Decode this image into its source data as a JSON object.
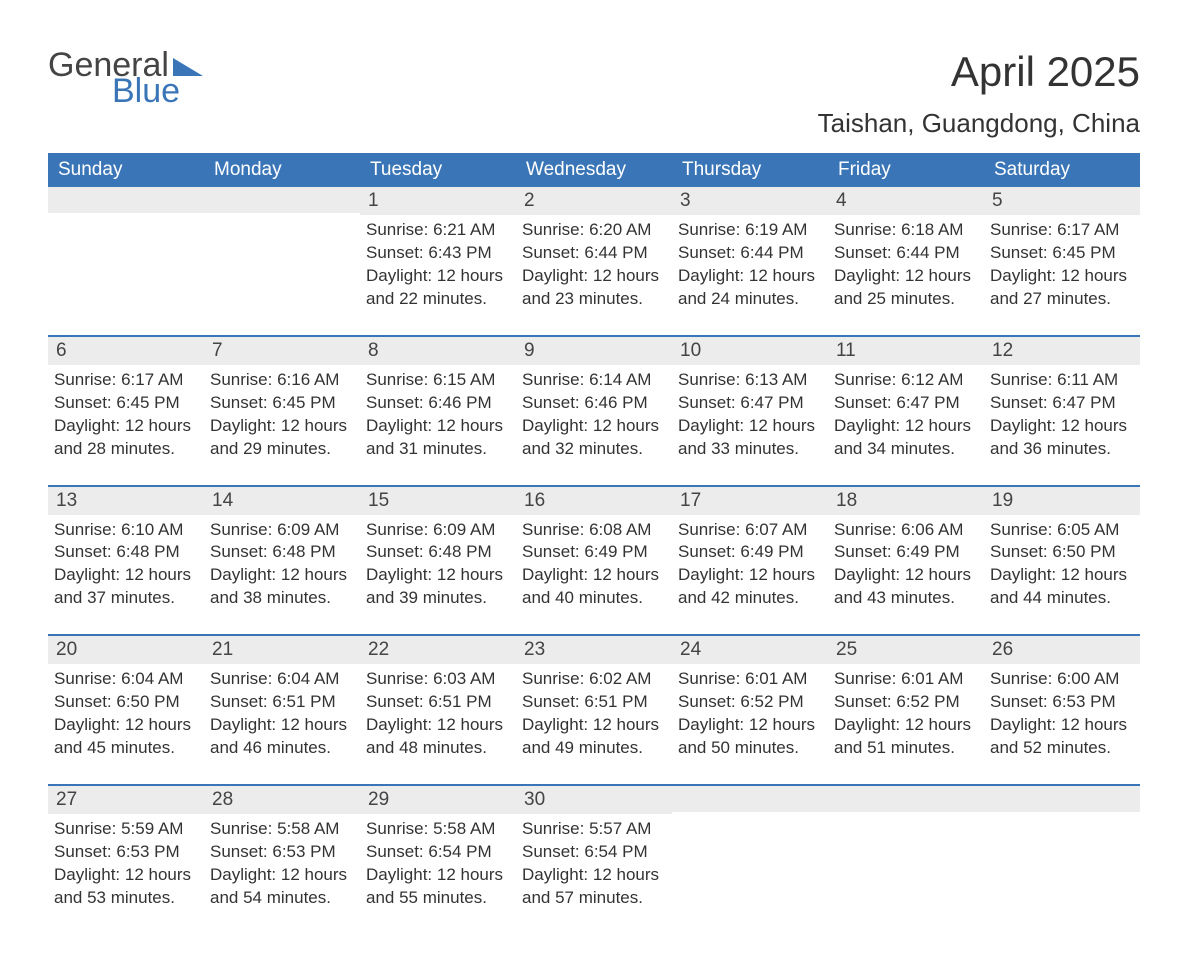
{
  "brand": {
    "word1": "General",
    "word2": "Blue"
  },
  "title": "April 2025",
  "location": "Taishan, Guangdong, China",
  "colors": {
    "header_bg": "#3a76b7",
    "header_text": "#ffffff",
    "daynum_bg": "#ececec",
    "rule": "#3a76b7",
    "text": "#333333",
    "logo_gray": "#444444",
    "logo_blue": "#3a76b7",
    "page_bg": "#ffffff"
  },
  "typography": {
    "title_fontsize": 42,
    "location_fontsize": 26,
    "weekday_fontsize": 19,
    "daynum_fontsize": 19,
    "body_fontsize": 17,
    "logo_fontsize": 34,
    "font_family": "Arial"
  },
  "weekdays": [
    "Sunday",
    "Monday",
    "Tuesday",
    "Wednesday",
    "Thursday",
    "Friday",
    "Saturday"
  ],
  "labels": {
    "sunrise": "Sunrise:",
    "sunset": "Sunset:",
    "daylight": "Daylight:"
  },
  "weeks": [
    [
      null,
      null,
      {
        "n": "1",
        "sunrise": "6:21 AM",
        "sunset": "6:43 PM",
        "daylight": "12 hours and 22 minutes."
      },
      {
        "n": "2",
        "sunrise": "6:20 AM",
        "sunset": "6:44 PM",
        "daylight": "12 hours and 23 minutes."
      },
      {
        "n": "3",
        "sunrise": "6:19 AM",
        "sunset": "6:44 PM",
        "daylight": "12 hours and 24 minutes."
      },
      {
        "n": "4",
        "sunrise": "6:18 AM",
        "sunset": "6:44 PM",
        "daylight": "12 hours and 25 minutes."
      },
      {
        "n": "5",
        "sunrise": "6:17 AM",
        "sunset": "6:45 PM",
        "daylight": "12 hours and 27 minutes."
      }
    ],
    [
      {
        "n": "6",
        "sunrise": "6:17 AM",
        "sunset": "6:45 PM",
        "daylight": "12 hours and 28 minutes."
      },
      {
        "n": "7",
        "sunrise": "6:16 AM",
        "sunset": "6:45 PM",
        "daylight": "12 hours and 29 minutes."
      },
      {
        "n": "8",
        "sunrise": "6:15 AM",
        "sunset": "6:46 PM",
        "daylight": "12 hours and 31 minutes."
      },
      {
        "n": "9",
        "sunrise": "6:14 AM",
        "sunset": "6:46 PM",
        "daylight": "12 hours and 32 minutes."
      },
      {
        "n": "10",
        "sunrise": "6:13 AM",
        "sunset": "6:47 PM",
        "daylight": "12 hours and 33 minutes."
      },
      {
        "n": "11",
        "sunrise": "6:12 AM",
        "sunset": "6:47 PM",
        "daylight": "12 hours and 34 minutes."
      },
      {
        "n": "12",
        "sunrise": "6:11 AM",
        "sunset": "6:47 PM",
        "daylight": "12 hours and 36 minutes."
      }
    ],
    [
      {
        "n": "13",
        "sunrise": "6:10 AM",
        "sunset": "6:48 PM",
        "daylight": "12 hours and 37 minutes."
      },
      {
        "n": "14",
        "sunrise": "6:09 AM",
        "sunset": "6:48 PM",
        "daylight": "12 hours and 38 minutes."
      },
      {
        "n": "15",
        "sunrise": "6:09 AM",
        "sunset": "6:48 PM",
        "daylight": "12 hours and 39 minutes."
      },
      {
        "n": "16",
        "sunrise": "6:08 AM",
        "sunset": "6:49 PM",
        "daylight": "12 hours and 40 minutes."
      },
      {
        "n": "17",
        "sunrise": "6:07 AM",
        "sunset": "6:49 PM",
        "daylight": "12 hours and 42 minutes."
      },
      {
        "n": "18",
        "sunrise": "6:06 AM",
        "sunset": "6:49 PM",
        "daylight": "12 hours and 43 minutes."
      },
      {
        "n": "19",
        "sunrise": "6:05 AM",
        "sunset": "6:50 PM",
        "daylight": "12 hours and 44 minutes."
      }
    ],
    [
      {
        "n": "20",
        "sunrise": "6:04 AM",
        "sunset": "6:50 PM",
        "daylight": "12 hours and 45 minutes."
      },
      {
        "n": "21",
        "sunrise": "6:04 AM",
        "sunset": "6:51 PM",
        "daylight": "12 hours and 46 minutes."
      },
      {
        "n": "22",
        "sunrise": "6:03 AM",
        "sunset": "6:51 PM",
        "daylight": "12 hours and 48 minutes."
      },
      {
        "n": "23",
        "sunrise": "6:02 AM",
        "sunset": "6:51 PM",
        "daylight": "12 hours and 49 minutes."
      },
      {
        "n": "24",
        "sunrise": "6:01 AM",
        "sunset": "6:52 PM",
        "daylight": "12 hours and 50 minutes."
      },
      {
        "n": "25",
        "sunrise": "6:01 AM",
        "sunset": "6:52 PM",
        "daylight": "12 hours and 51 minutes."
      },
      {
        "n": "26",
        "sunrise": "6:00 AM",
        "sunset": "6:53 PM",
        "daylight": "12 hours and 52 minutes."
      }
    ],
    [
      {
        "n": "27",
        "sunrise": "5:59 AM",
        "sunset": "6:53 PM",
        "daylight": "12 hours and 53 minutes."
      },
      {
        "n": "28",
        "sunrise": "5:58 AM",
        "sunset": "6:53 PM",
        "daylight": "12 hours and 54 minutes."
      },
      {
        "n": "29",
        "sunrise": "5:58 AM",
        "sunset": "6:54 PM",
        "daylight": "12 hours and 55 minutes."
      },
      {
        "n": "30",
        "sunrise": "5:57 AM",
        "sunset": "6:54 PM",
        "daylight": "12 hours and 57 minutes."
      },
      null,
      null,
      null
    ]
  ]
}
